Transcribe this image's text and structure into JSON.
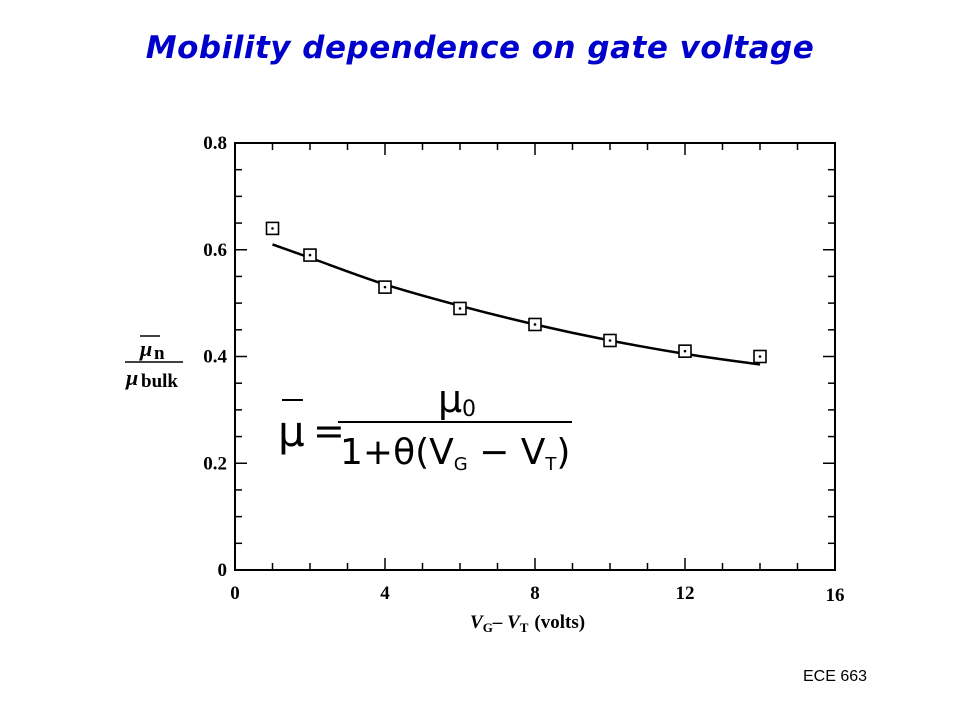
{
  "title": "Mobility dependence on gate voltage",
  "footer": "ECE 663",
  "equation": {
    "lhs": "μ",
    "numerator_symbol": "μ",
    "numerator_sub": "0",
    "denominator_prefix": "1+θ(V",
    "sub_g": "G",
    "minus_v": " − V",
    "sub_t": "T",
    "close": ")"
  },
  "axis_labels": {
    "ylabel_top": "μ",
    "ylabel_top_sub": "n",
    "ylabel_bottom": "μ",
    "ylabel_bottom_sub": "bulk",
    "xlabel_v1": "V",
    "xlabel_sub1": "G",
    "xlabel_minus": "– V",
    "xlabel_sub2": "T",
    "xlabel_unit": "(volts)"
  },
  "chart_data": {
    "type": "scatter",
    "title": "Mobility dependence on gate voltage",
    "xlim": [
      0,
      16
    ],
    "ylim": [
      0,
      0.8
    ],
    "x_ticks": [
      0,
      4,
      8,
      12,
      16
    ],
    "y_ticks": [
      0,
      0.2,
      0.4,
      0.6,
      0.8
    ],
    "x_tick_labels": [
      "0",
      "4",
      "8",
      "12",
      "16"
    ],
    "y_tick_labels": [
      "0",
      "0.2",
      "0.4",
      "0.6",
      "0.8"
    ],
    "series": [
      {
        "marker": "square",
        "x": [
          1,
          2,
          4,
          6,
          8,
          10,
          12,
          14
        ],
        "y": [
          0.64,
          0.59,
          0.53,
          0.49,
          0.46,
          0.43,
          0.41,
          0.4
        ]
      },
      {
        "style": "line",
        "x": [
          1,
          2,
          4,
          6,
          8,
          10,
          12,
          14
        ],
        "y": [
          0.61,
          0.585,
          0.535,
          0.495,
          0.46,
          0.43,
          0.405,
          0.385
        ]
      }
    ],
    "grid": false
  }
}
